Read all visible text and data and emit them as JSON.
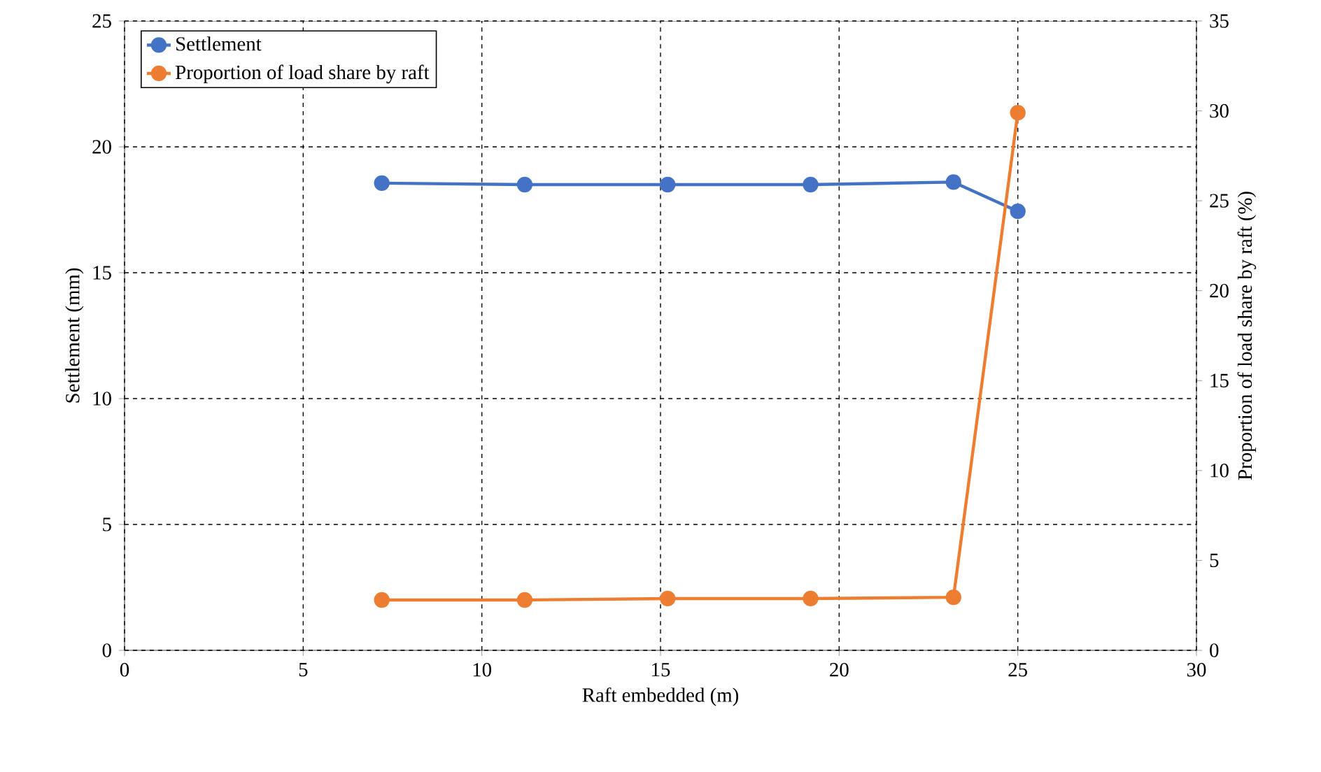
{
  "chart_data": {
    "type": "line",
    "xlabel": "Raft embedded (m)",
    "ylabel": "Settlement (mm)",
    "y2label": "Proportion of load share by raft (%)",
    "xlim": [
      0,
      30
    ],
    "xticks": [
      0,
      5,
      10,
      15,
      20,
      25,
      30
    ],
    "ylim": [
      0,
      25
    ],
    "yticks": [
      0,
      5,
      10,
      15,
      20,
      25
    ],
    "y2lim": [
      0,
      35
    ],
    "y2ticks": [
      0,
      5,
      10,
      15,
      20,
      25,
      30,
      35
    ],
    "grid": true,
    "legend": "top left",
    "marker": "circle",
    "line_style": "solid",
    "series": [
      {
        "name": "Settlement",
        "color": "#4472c4",
        "axis": "y",
        "x": [
          7.2,
          11.2,
          15.2,
          19.2,
          23.2,
          25.0
        ],
        "values": [
          18.56,
          18.5,
          18.5,
          18.5,
          18.6,
          17.44
        ]
      },
      {
        "name": "Proportion of load share by raft",
        "color": "#ed7d31",
        "axis": "y2",
        "x": [
          7.2,
          11.2,
          15.2,
          19.2,
          23.2,
          25.0
        ],
        "values": [
          2.8,
          2.8,
          2.88,
          2.88,
          2.95,
          29.9
        ]
      }
    ]
  }
}
